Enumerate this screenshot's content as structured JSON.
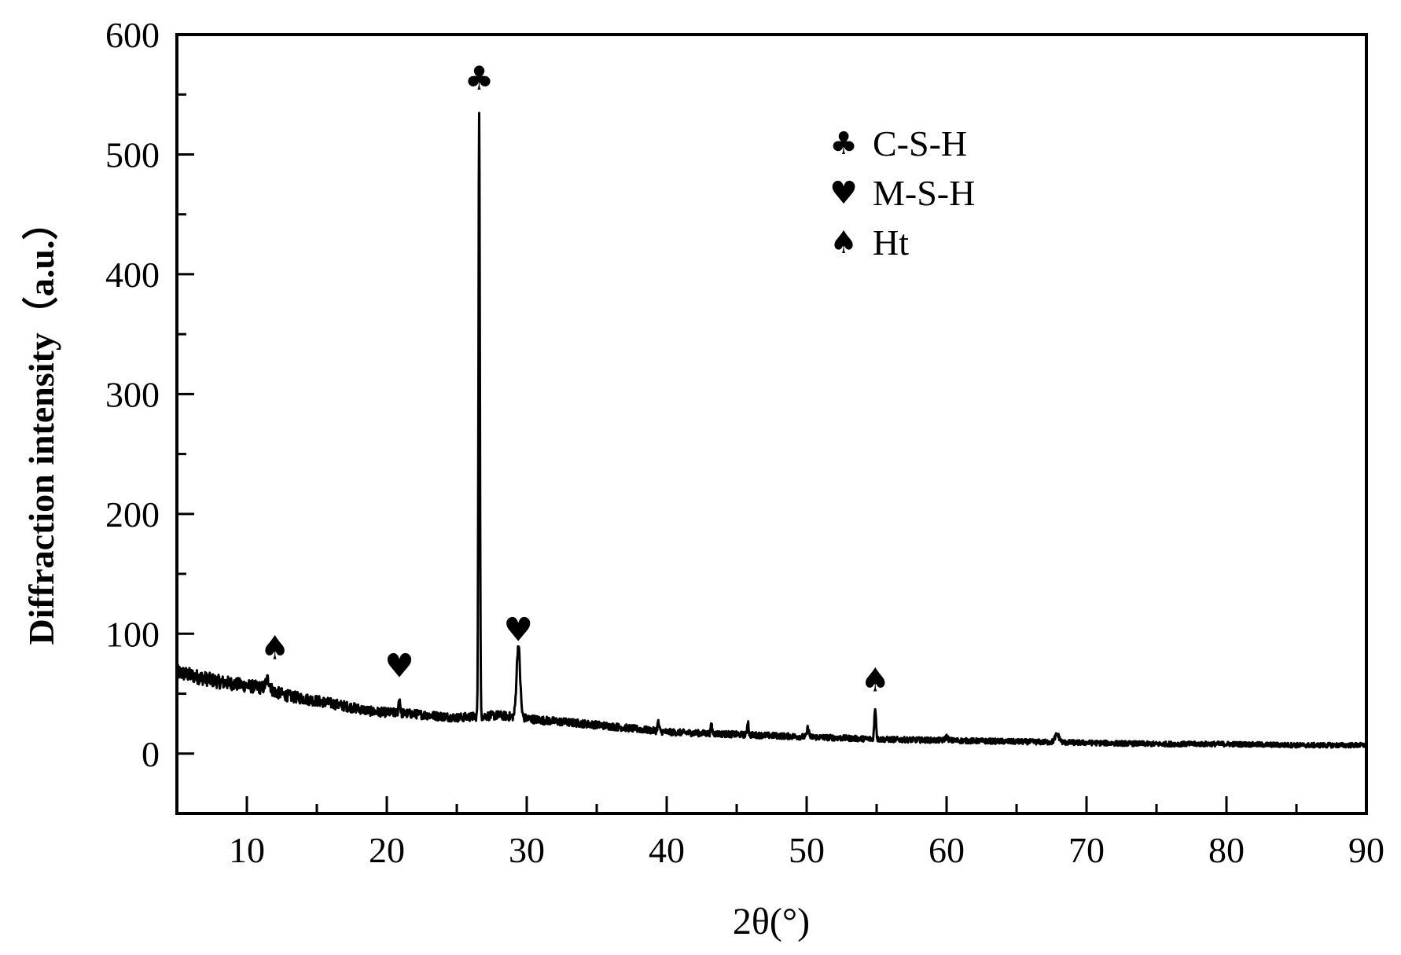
{
  "chart_data": {
    "type": "line",
    "xlabel": "2θ(°)",
    "ylabel": "Diffraction intensity（a.u.）",
    "xlim": [
      5,
      90
    ],
    "ylim": [
      -50,
      600
    ],
    "x_ticks": [
      10,
      20,
      30,
      40,
      50,
      60,
      70,
      80,
      90
    ],
    "y_ticks": [
      0,
      100,
      200,
      300,
      400,
      500,
      600
    ],
    "grid": false,
    "legend_position": "top-right",
    "legend": [
      {
        "symbol": "club",
        "label": "C-S-H"
      },
      {
        "symbol": "heart",
        "label": "M-S-H"
      },
      {
        "symbol": "spade",
        "label": "Ht"
      }
    ],
    "series": [
      {
        "baseline": [
          [
            5,
            68
          ],
          [
            8,
            60
          ],
          [
            11,
            55
          ],
          [
            13,
            48
          ],
          [
            16,
            42
          ],
          [
            19,
            35
          ],
          [
            22,
            33
          ],
          [
            25,
            30
          ],
          [
            28,
            32
          ],
          [
            31,
            28
          ],
          [
            35,
            24
          ],
          [
            40,
            18
          ],
          [
            45,
            16
          ],
          [
            50,
            14
          ],
          [
            55,
            12
          ],
          [
            60,
            11
          ],
          [
            65,
            10
          ],
          [
            70,
            9
          ],
          [
            75,
            8
          ],
          [
            80,
            8
          ],
          [
            85,
            7
          ],
          [
            90,
            7
          ]
        ],
        "peaks": [
          {
            "x": 11.5,
            "y": 62,
            "width": 0.3
          },
          {
            "x": 20.9,
            "y": 46,
            "width": 0.12
          },
          {
            "x": 26.6,
            "y": 538,
            "width": 0.1
          },
          {
            "x": 29.4,
            "y": 90,
            "width": 0.25
          },
          {
            "x": 39.4,
            "y": 26,
            "width": 0.12
          },
          {
            "x": 43.2,
            "y": 24,
            "width": 0.1
          },
          {
            "x": 45.8,
            "y": 27,
            "width": 0.1
          },
          {
            "x": 50.1,
            "y": 22,
            "width": 0.12
          },
          {
            "x": 54.9,
            "y": 38,
            "width": 0.12
          },
          {
            "x": 60.0,
            "y": 14,
            "width": 0.2
          },
          {
            "x": 67.9,
            "y": 16,
            "width": 0.3
          }
        ]
      }
    ],
    "annotations": [
      {
        "symbol": "spade",
        "x": 12.0,
        "y": 75
      },
      {
        "symbol": "heart",
        "x": 20.9,
        "y": 60
      },
      {
        "symbol": "club",
        "x": 26.6,
        "y": 550
      },
      {
        "symbol": "heart",
        "x": 29.4,
        "y": 90
      },
      {
        "symbol": "spade",
        "x": 54.9,
        "y": 48
      }
    ]
  }
}
